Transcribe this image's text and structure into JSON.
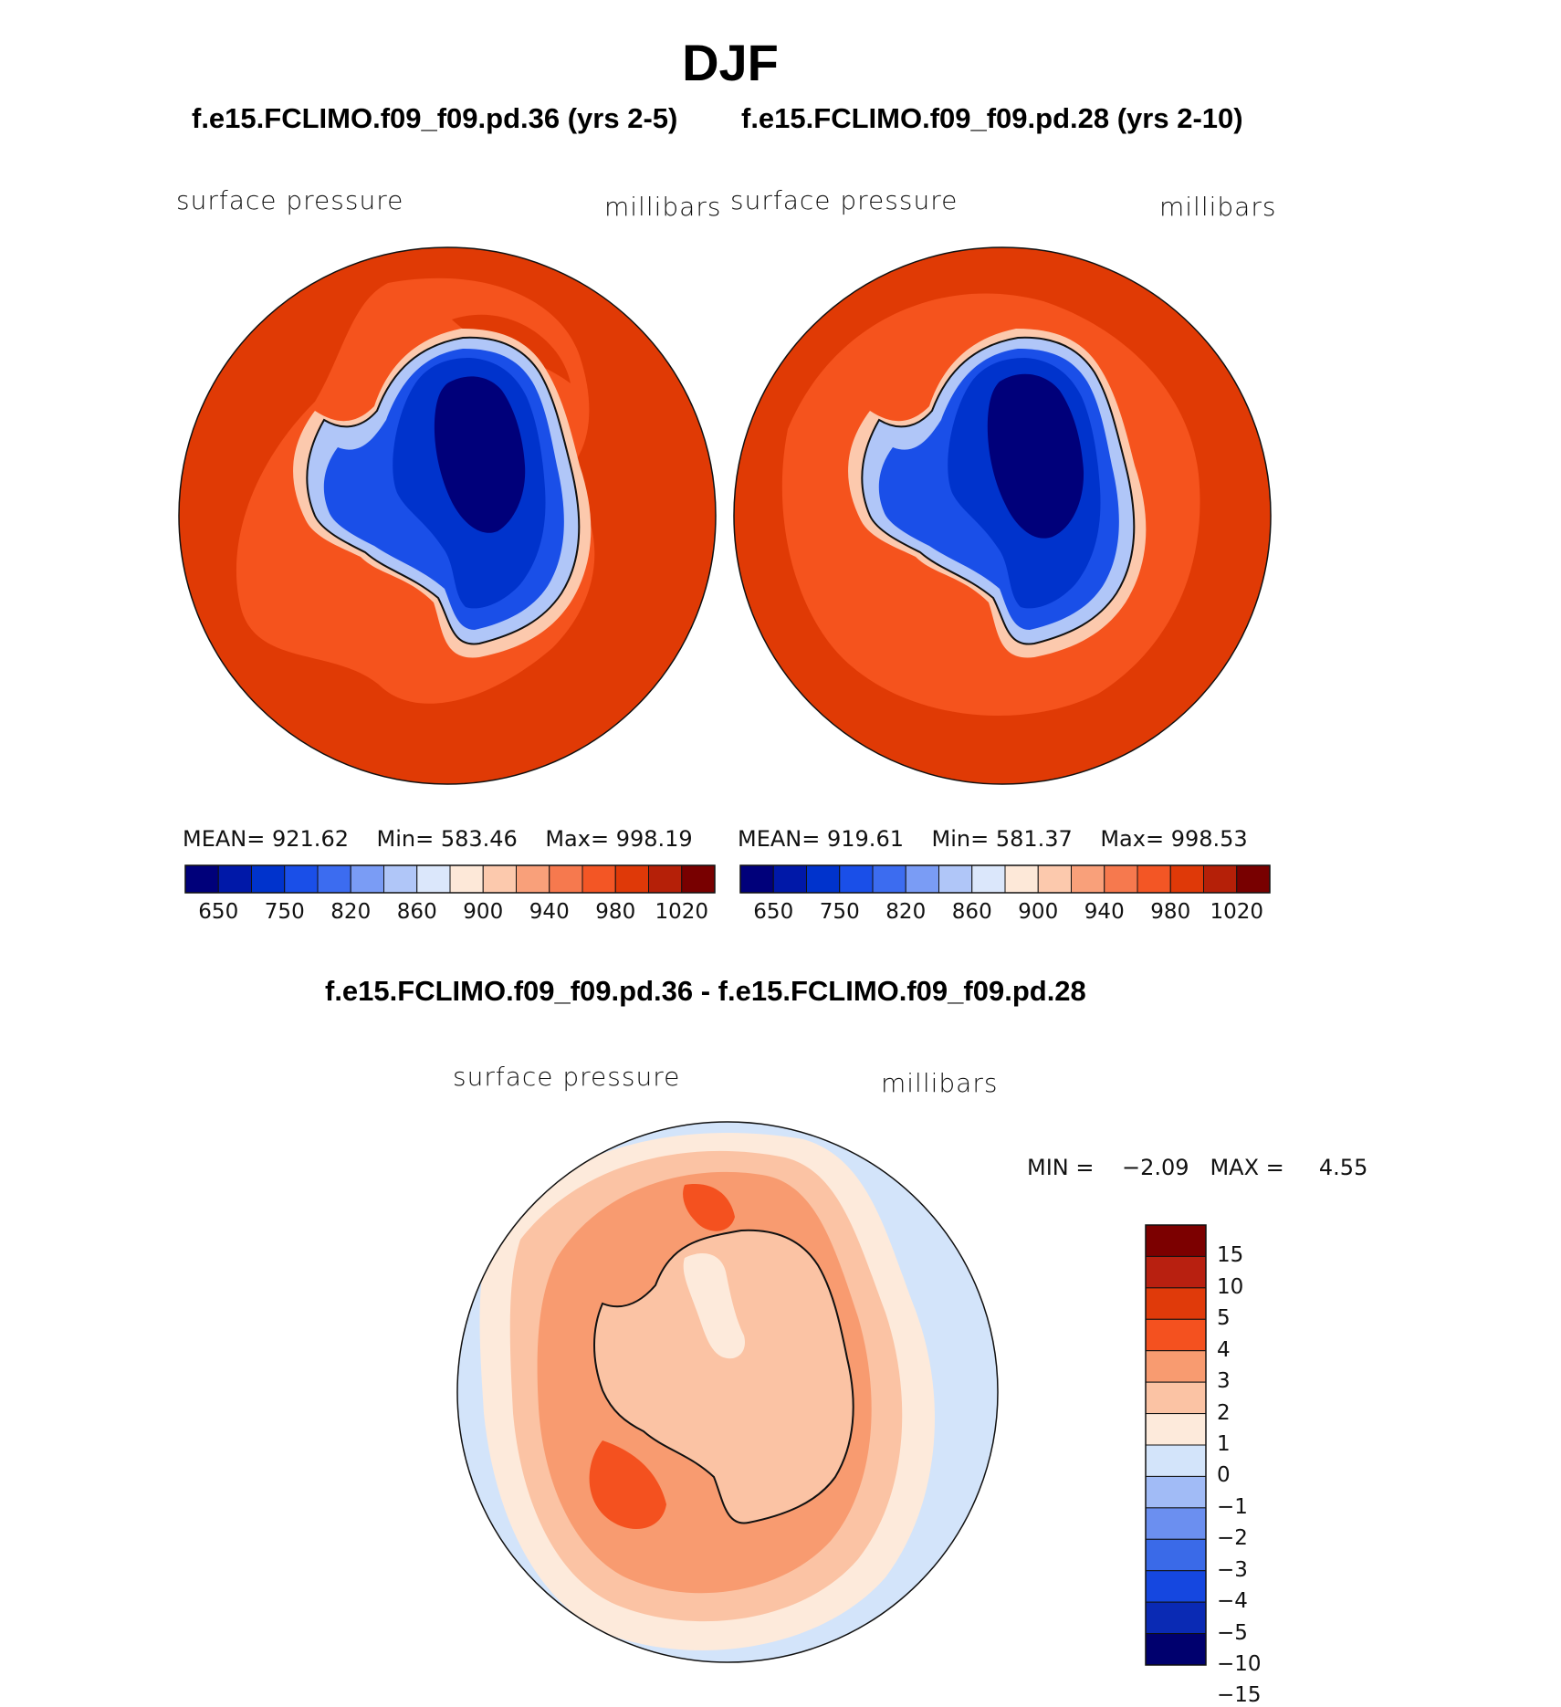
{
  "figure": {
    "season_title": "DJF",
    "panels": [
      {
        "case_title": "f.e15.FCLIMO.f09_f09.pd.36 (yrs 2-5)",
        "variable": "surface pressure",
        "units": "millibars",
        "stats": {
          "mean_label": "MEAN=",
          "mean": "921.62",
          "min_label": "Min=",
          "min": "583.46",
          "max_label": "Max=",
          "max": "998.19"
        }
      },
      {
        "case_title": "f.e15.FCLIMO.f09_f09.pd.28 (yrs 2-10)",
        "variable": "surface pressure",
        "units": "millibars",
        "stats": {
          "mean_label": "MEAN=",
          "mean": "919.61",
          "min_label": "Min=",
          "min": "581.37",
          "max_label": "Max=",
          "max": "998.53"
        }
      }
    ],
    "diff_panel": {
      "case_title": "f.e15.FCLIMO.f09_f09.pd.36 - f.e15.FCLIMO.f09_f09.pd.28",
      "variable": "surface pressure",
      "units": "millibars",
      "min_label": "MIN =",
      "min": "−2.09",
      "max_label": "MAX =",
      "max": "4.55"
    }
  },
  "colorbars": {
    "abs_colors": [
      "#00007a",
      "#0018a8",
      "#0033cc",
      "#1a4fe8",
      "#3c6cf0",
      "#7a9cf5",
      "#b0c6f8",
      "#dbe7fb",
      "#fde8d8",
      "#fcc9ad",
      "#f9a07a",
      "#f6794e",
      "#f35625",
      "#df3908",
      "#b52008",
      "#780000"
    ],
    "abs_ticks": [
      "650",
      "750",
      "820",
      "860",
      "900",
      "940",
      "980",
      "1020"
    ],
    "diff_colors": [
      "#00006e",
      "#0a2ab4",
      "#1547e0",
      "#3a6ae8",
      "#6b8ff0",
      "#a1bbf6",
      "#d3e4fa",
      "#fdeadb",
      "#fbc3a4",
      "#f89b70",
      "#f4511f",
      "#e03a0a",
      "#b82010",
      "#7c0000"
    ],
    "diff_ticks": [
      "15",
      "10",
      "5",
      "4",
      "3",
      "2",
      "1",
      "0",
      "−1",
      "−2",
      "−3",
      "−4",
      "−5",
      "−10",
      "−15"
    ]
  },
  "map_colors": {
    "ocean_high": "#e03a05",
    "ocean_mid": "#f5531d",
    "coast_light": "#fcc9ad",
    "ice_light": "#b0c6f8",
    "ice_mid": "#1a4fe8",
    "ice_deep": "#0033cc",
    "ice_core": "#00007a",
    "diff_bg": "#d3e4fa",
    "diff_0": "#fdeadb",
    "diff_1": "#fbc3a4",
    "diff_2": "#f89b70",
    "diff_3": "#f4511f"
  }
}
